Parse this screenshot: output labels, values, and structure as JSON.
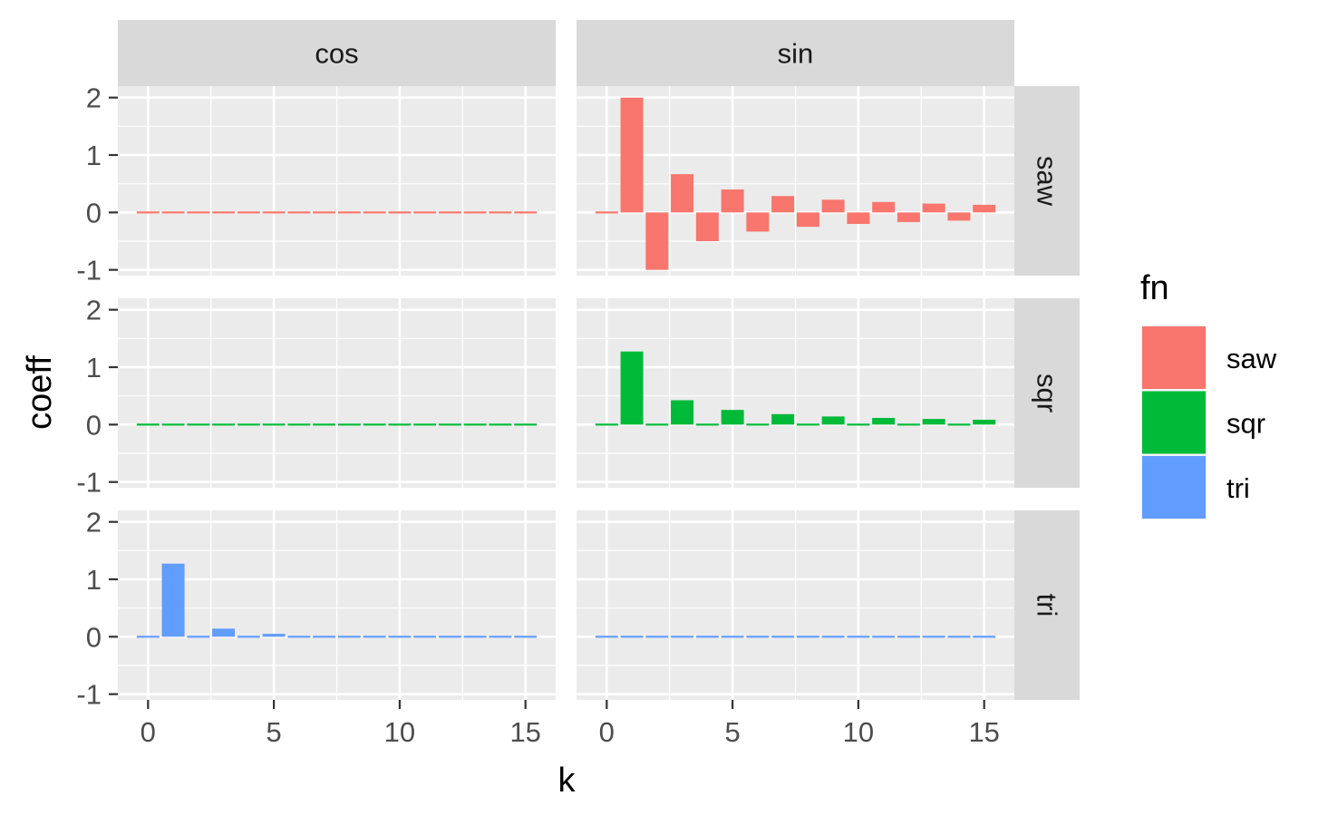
{
  "chart_data": {
    "type": "bar",
    "facet_columns": [
      "cos",
      "sin"
    ],
    "facet_rows": [
      "saw",
      "sqr",
      "tri"
    ],
    "xlabel": "k",
    "ylabel": "coeff",
    "x_ticks": [
      0,
      5,
      10,
      15
    ],
    "x_tick_labels": [
      "0",
      "5",
      "10",
      "15"
    ],
    "y_ticks": [
      -1,
      0,
      1,
      2
    ],
    "y_tick_labels": [
      "-1",
      "0",
      "1",
      "2"
    ],
    "xlim": [
      -1.2,
      16.2
    ],
    "ylim": [
      -1.1,
      2.2
    ],
    "grid": true,
    "legend": {
      "title": "fn",
      "placement": "right",
      "entries": [
        {
          "label": "saw",
          "color": "#F8766D"
        },
        {
          "label": "sqr",
          "color": "#00BA38"
        },
        {
          "label": "tri",
          "color": "#619CFF"
        }
      ]
    },
    "k": [
      0,
      1,
      2,
      3,
      4,
      5,
      6,
      7,
      8,
      9,
      10,
      11,
      12,
      13,
      14,
      15
    ],
    "panels": [
      {
        "row": "saw",
        "col": "cos",
        "color": "#F8766D",
        "values": [
          0,
          0,
          0,
          0,
          0,
          0,
          0,
          0,
          0,
          0,
          0,
          0,
          0,
          0,
          0,
          0
        ]
      },
      {
        "row": "saw",
        "col": "sin",
        "color": "#F8766D",
        "values": [
          0,
          2,
          -1,
          0.667,
          -0.5,
          0.4,
          -0.333,
          0.286,
          -0.25,
          0.222,
          -0.2,
          0.182,
          -0.167,
          0.154,
          -0.143,
          0.133
        ]
      },
      {
        "row": "sqr",
        "col": "cos",
        "color": "#00BA38",
        "values": [
          0,
          0,
          0,
          0,
          0,
          0,
          0,
          0,
          0,
          0,
          0,
          0,
          0,
          0,
          0,
          0
        ]
      },
      {
        "row": "sqr",
        "col": "sin",
        "color": "#00BA38",
        "values": [
          0,
          1.273,
          0,
          0.424,
          0,
          0.255,
          0,
          0.182,
          0,
          0.141,
          0,
          0.116,
          0,
          0.098,
          0,
          0.085
        ]
      },
      {
        "row": "tri",
        "col": "cos",
        "color": "#619CFF",
        "values": [
          0,
          1.273,
          0,
          0.141,
          0,
          0.051,
          0,
          0.026,
          0,
          0.016,
          0,
          0.011,
          0,
          0.008,
          0,
          0.006
        ]
      },
      {
        "row": "tri",
        "col": "sin",
        "color": "#619CFF",
        "values": [
          0,
          0,
          0,
          0,
          0,
          0,
          0,
          0,
          0,
          0,
          0,
          0,
          0,
          0,
          0,
          0
        ]
      }
    ]
  }
}
